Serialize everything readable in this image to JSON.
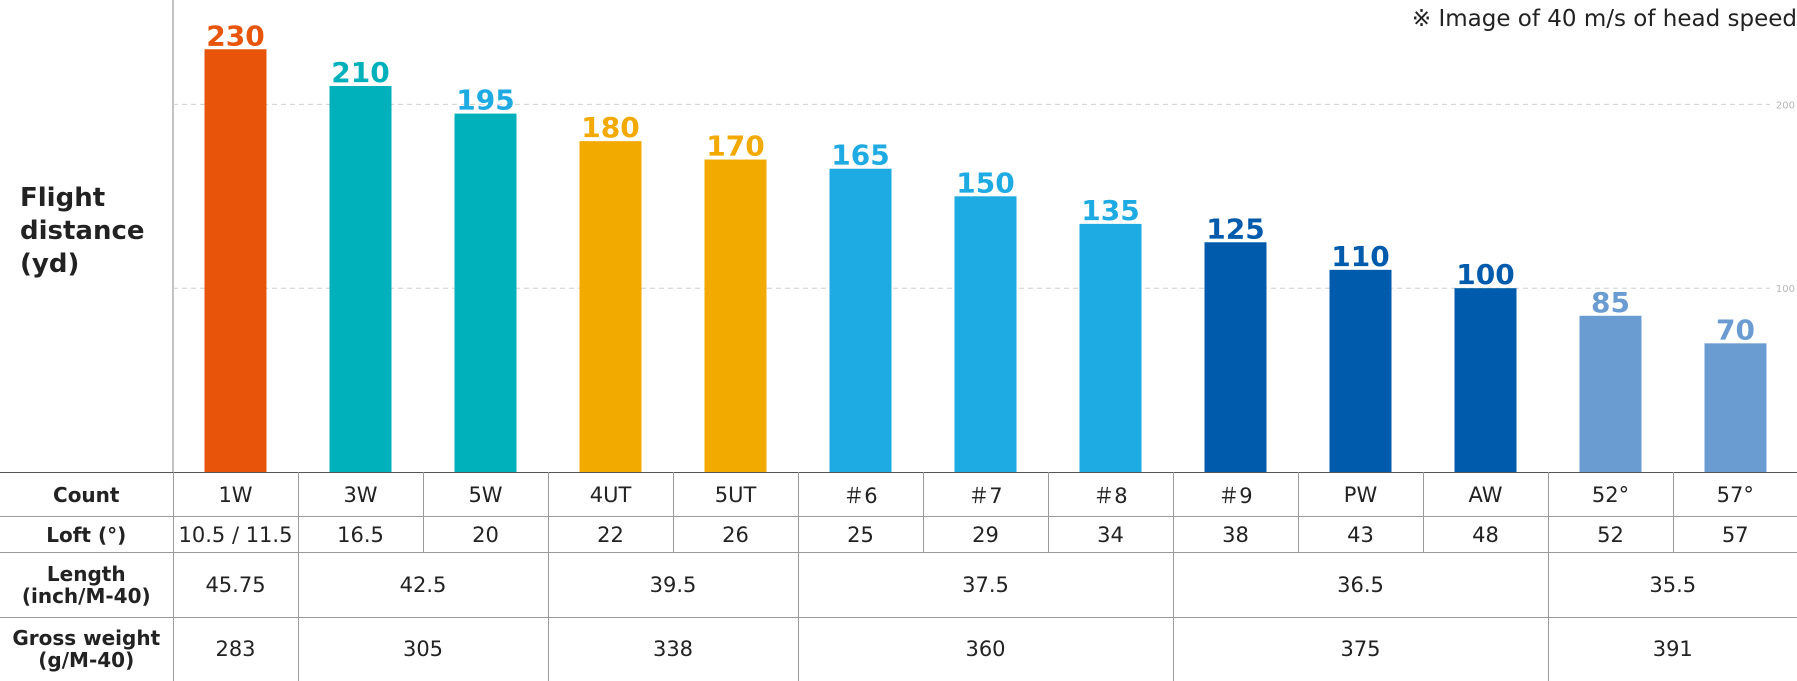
{
  "note": "※ Image of 40 m/s of head speed",
  "chart_data": {
    "type": "bar",
    "ylabel": [
      "Flight",
      "distance",
      "(yd)"
    ],
    "ylim": [
      0,
      230
    ],
    "grid": true,
    "grid_lines": [
      {
        "value": 200,
        "label": "200"
      },
      {
        "value": 100,
        "label": "100"
      }
    ],
    "categories": [
      "1W",
      "3W",
      "5W",
      "4UT",
      "5UT",
      "＃6",
      "＃7",
      "＃8",
      "＃9",
      "PW",
      "AW",
      "52°",
      "57°"
    ],
    "values": [
      230,
      210,
      195,
      180,
      170,
      165,
      150,
      135,
      125,
      110,
      100,
      85,
      70
    ],
    "colors": [
      "#E8550A",
      "#00B0BA",
      "#00B0BA",
      "#F2A900",
      "#F2A900",
      "#1EAAE2",
      "#1EAAE2",
      "#1EAAE2",
      "#005BAC",
      "#005BAC",
      "#005BAC",
      "#6A9BD1",
      "#6A9BD1"
    ],
    "value_label_colors": [
      "#E8550A",
      "#00B0BA",
      "#1EAAE2",
      "#F2A900",
      "#F2A900",
      "#1EAAE2",
      "#1EAAE2",
      "#1EAAE2",
      "#005BAC",
      "#005BAC",
      "#005BAC",
      "#6A9BD1",
      "#6A9BD1"
    ]
  },
  "table": {
    "count": {
      "label": "Count",
      "cells": [
        "1W",
        "3W",
        "5W",
        "4UT",
        "5UT",
        "＃6",
        "＃7",
        "＃8",
        "＃9",
        "PW",
        "AW",
        "52°",
        "57°"
      ]
    },
    "loft": {
      "label": "Loft (°)",
      "cells": [
        "10.5 / 11.5",
        "16.5",
        "20",
        "22",
        "26",
        "25",
        "29",
        "34",
        "38",
        "43",
        "48",
        "52",
        "57"
      ]
    },
    "length": {
      "label": [
        "Length",
        "(inch/M-40)"
      ],
      "cells": [
        "45.75",
        "42.5",
        "39.5",
        "37.5",
        "36.5",
        "35.5"
      ]
    },
    "weight": {
      "label": [
        "Gross weight",
        "(g/M-40)"
      ],
      "cells": [
        "283",
        "305",
        "338",
        "360",
        "375",
        "391"
      ]
    }
  }
}
